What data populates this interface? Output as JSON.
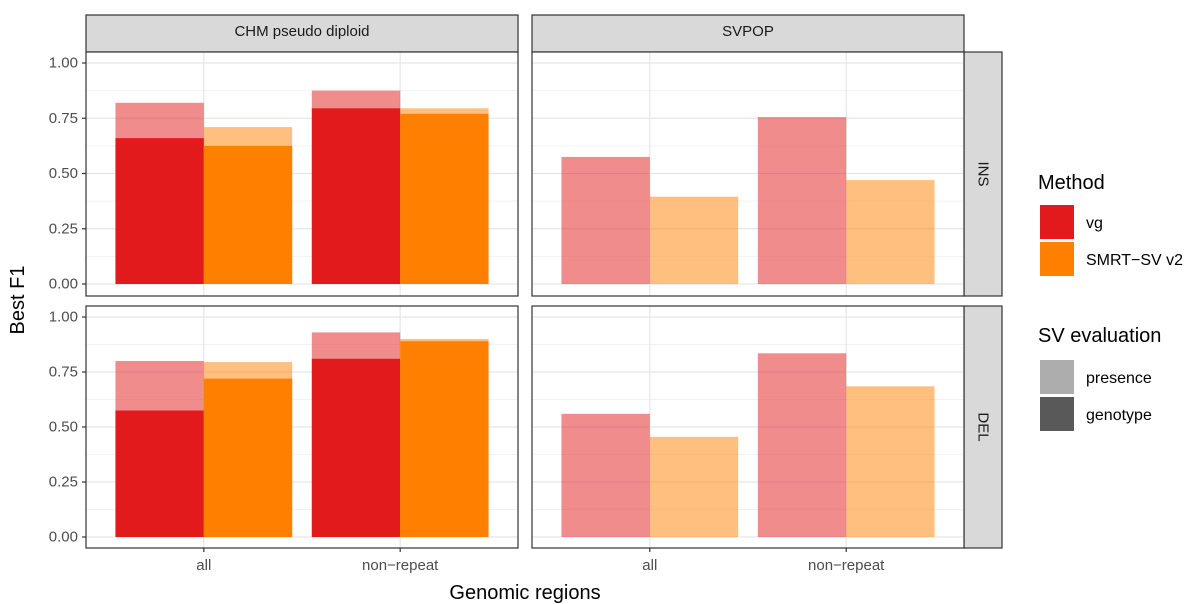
{
  "chart_data": {
    "type": "bar",
    "facet_columns": [
      "CHM pseudo diploid",
      "SVPOP"
    ],
    "facet_rows": [
      "INS",
      "DEL"
    ],
    "categories": [
      "all",
      "non−repeat"
    ],
    "xlabel": "Genomic regions",
    "ylabel": "Best F1",
    "ylim": [
      0,
      1
    ],
    "yticks": [
      "0.00",
      "0.25",
      "0.50",
      "0.75",
      "1.00"
    ],
    "grid": true,
    "legend_placement": "right",
    "colors": {
      "vg": "#e31a1c",
      "SMRT-SV v2": "#ff7f00"
    },
    "legend": {
      "method_title": "Method",
      "methods": [
        "vg",
        "SMRT−SV v2"
      ],
      "eval_title": "SV evaluation",
      "evals": [
        "presence",
        "genotype"
      ]
    },
    "panels": [
      {
        "col": "CHM pseudo diploid",
        "row": "INS",
        "series": [
          {
            "method": "vg",
            "presence": [
              0.82,
              0.875
            ],
            "genotype": [
              0.66,
              0.795
            ]
          },
          {
            "method": "SMRT-SV v2",
            "presence": [
              0.71,
              0.795
            ],
            "genotype": [
              0.625,
              0.77
            ]
          }
        ]
      },
      {
        "col": "SVPOP",
        "row": "INS",
        "series": [
          {
            "method": "vg",
            "presence": [
              0.575,
              0.755
            ],
            "genotype": null
          },
          {
            "method": "SMRT-SV v2",
            "presence": [
              0.395,
              0.47
            ],
            "genotype": null
          }
        ]
      },
      {
        "col": "CHM pseudo diploid",
        "row": "DEL",
        "series": [
          {
            "method": "vg",
            "presence": [
              0.8,
              0.93
            ],
            "genotype": [
              0.575,
              0.81
            ]
          },
          {
            "method": "SMRT-SV v2",
            "presence": [
              0.795,
              0.9
            ],
            "genotype": [
              0.72,
              0.89
            ]
          }
        ]
      },
      {
        "col": "SVPOP",
        "row": "DEL",
        "series": [
          {
            "method": "vg",
            "presence": [
              0.56,
              0.835
            ],
            "genotype": null
          },
          {
            "method": "SMRT-SV v2",
            "presence": [
              0.455,
              0.685
            ],
            "genotype": null
          }
        ]
      }
    ]
  }
}
